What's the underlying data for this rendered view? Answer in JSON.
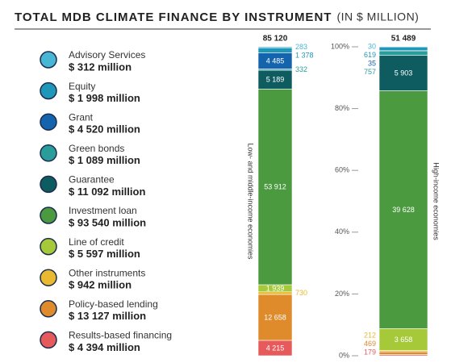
{
  "chart_data": {
    "type": "stacked_bar_100",
    "title": "TOTAL MDB CLIMATE FINANCE BY INSTRUMENT",
    "subtitle": "(IN $ MILLION)",
    "categories": [
      "Low- and middle-income economies",
      "High-income economies"
    ],
    "totals": [
      85120,
      51489
    ],
    "total_labels": [
      "85 120",
      "51 489"
    ],
    "ylim": [
      0,
      100
    ],
    "yticks": [
      {
        "value": 0,
        "label": "0%"
      },
      {
        "value": 20,
        "label": "20%"
      },
      {
        "value": 40,
        "label": "40%"
      },
      {
        "value": 60,
        "label": "60%"
      },
      {
        "value": 80,
        "label": "80%"
      },
      {
        "value": 100,
        "label": "100%"
      }
    ],
    "series": [
      {
        "name": "Advisory Services",
        "total": "$ 312 million",
        "color": "#49b6d6",
        "values": [
          283,
          30
        ],
        "value_labels": [
          "283",
          "30"
        ]
      },
      {
        "name": "Equity",
        "total": "$ 1 998 million",
        "color": "#1f97b8",
        "values": [
          1378,
          619
        ],
        "value_labels": [
          "1 378",
          "619"
        ]
      },
      {
        "name": "Grant",
        "total": "$ 4 520 million",
        "color": "#1463ad",
        "values": [
          4485,
          35
        ],
        "value_labels": [
          "4 485",
          "35"
        ]
      },
      {
        "name": "Green bonds",
        "total": "$ 1 089 million",
        "color": "#2a9d9b",
        "values": [
          332,
          757
        ],
        "value_labels": [
          "332",
          "757"
        ]
      },
      {
        "name": "Guarantee",
        "total": "$ 11 092 million",
        "color": "#0e5c60",
        "values": [
          5189,
          5903
        ],
        "value_labels": [
          "5 189",
          "5 903"
        ]
      },
      {
        "name": "Investment loan",
        "total": "$ 93 540 million",
        "color": "#4b9a3f",
        "values": [
          53912,
          39628
        ],
        "value_labels": [
          "53 912",
          "39 628"
        ]
      },
      {
        "name": "Line of credit",
        "total": "$ 5 597 million",
        "color": "#a6c93a",
        "values": [
          1939,
          3658
        ],
        "value_labels": [
          "1 939",
          "3 658"
        ]
      },
      {
        "name": "Other instruments",
        "total": "$ 942 million",
        "color": "#e9b92f",
        "values": [
          730,
          212
        ],
        "value_labels": [
          "730",
          "212"
        ]
      },
      {
        "name": "Policy-based lending",
        "total": "$ 13 127 million",
        "color": "#df8a2b",
        "values": [
          12658,
          469
        ],
        "value_labels": [
          "12 658",
          "469"
        ]
      },
      {
        "name": "Results-based financing",
        "total": "$ 4 394 million",
        "color": "#e65a5c",
        "values": [
          4215,
          179
        ],
        "value_labels": [
          "4 215",
          "179"
        ]
      }
    ]
  }
}
